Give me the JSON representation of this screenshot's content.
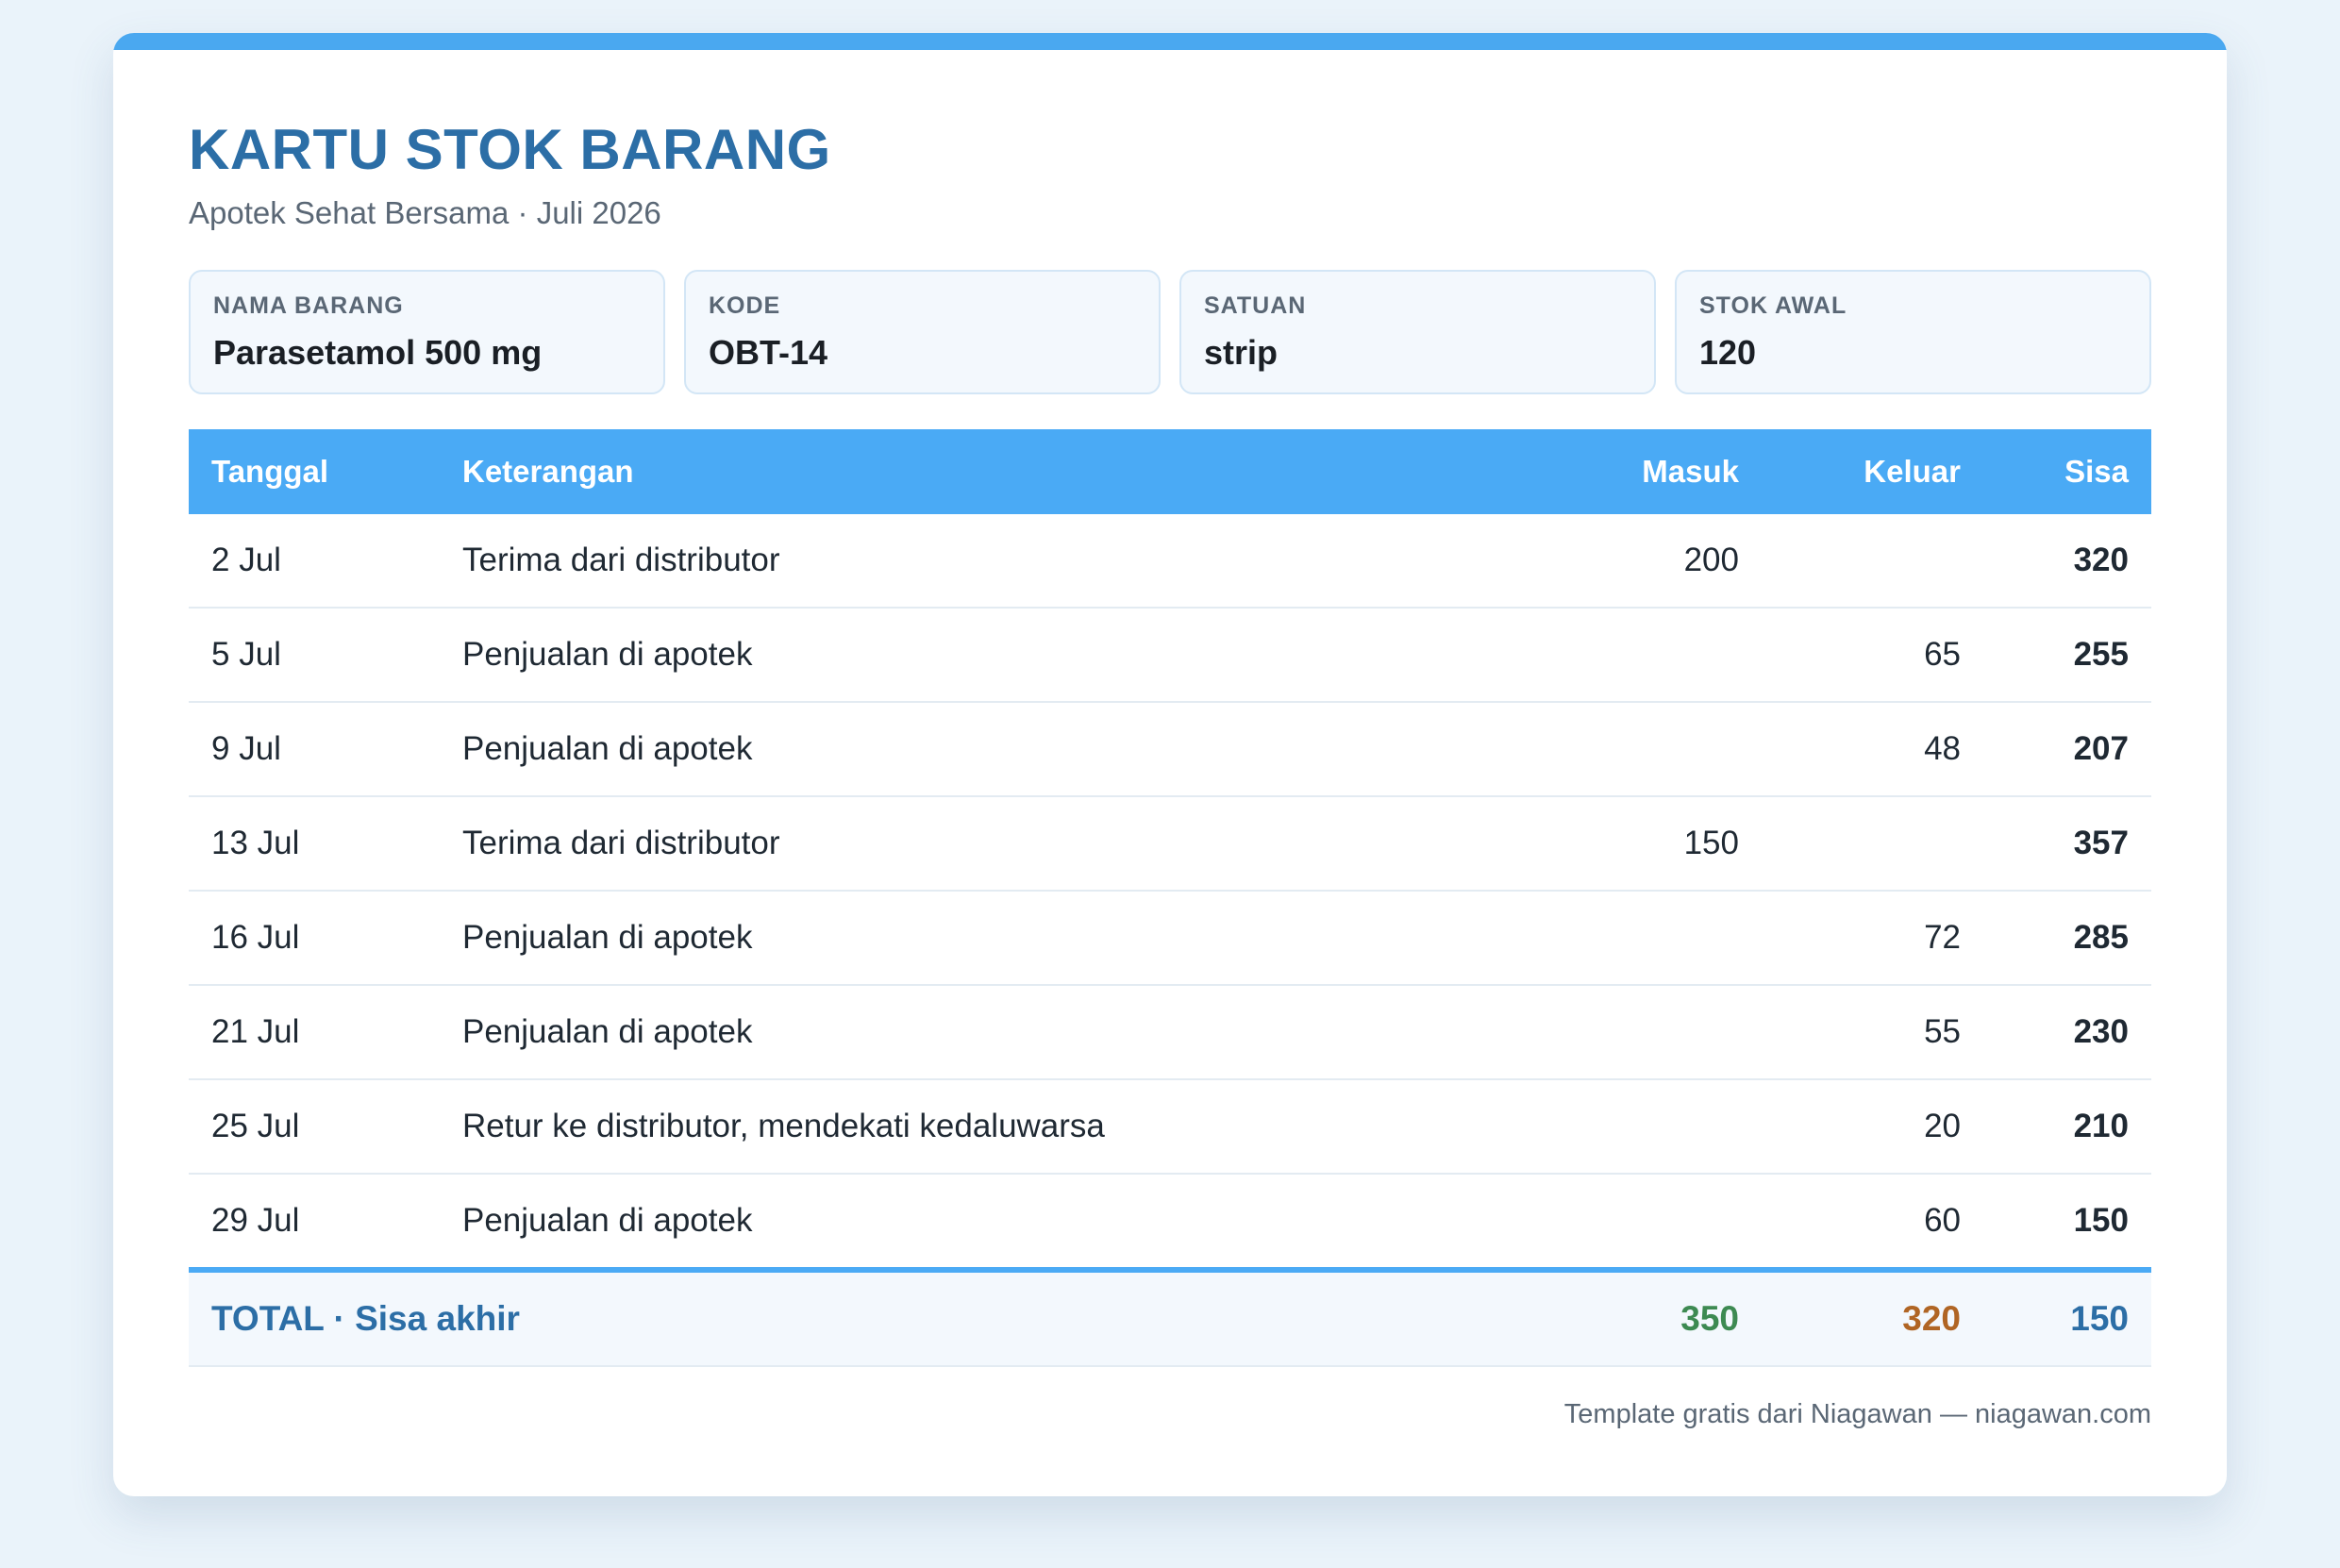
{
  "header": {
    "title": "KARTU STOK BARANG",
    "subtitle": "Apotek Sehat Bersama · Juli 2026"
  },
  "info": [
    {
      "label": "NAMA BARANG",
      "value": "Parasetamol 500 mg"
    },
    {
      "label": "KODE",
      "value": "OBT-14"
    },
    {
      "label": "SATUAN",
      "value": "strip"
    },
    {
      "label": "STOK AWAL",
      "value": "120"
    }
  ],
  "table": {
    "columns": [
      "Tanggal",
      "Keterangan",
      "Masuk",
      "Keluar",
      "Sisa"
    ],
    "rows": [
      {
        "date": "2 Jul",
        "desc": "Terima dari distributor",
        "in": "200",
        "out": "",
        "balance": "320"
      },
      {
        "date": "5 Jul",
        "desc": "Penjualan di apotek",
        "in": "",
        "out": "65",
        "balance": "255"
      },
      {
        "date": "9 Jul",
        "desc": "Penjualan di apotek",
        "in": "",
        "out": "48",
        "balance": "207"
      },
      {
        "date": "13 Jul",
        "desc": "Terima dari distributor",
        "in": "150",
        "out": "",
        "balance": "357"
      },
      {
        "date": "16 Jul",
        "desc": "Penjualan di apotek",
        "in": "",
        "out": "72",
        "balance": "285"
      },
      {
        "date": "21 Jul",
        "desc": "Penjualan di apotek",
        "in": "",
        "out": "55",
        "balance": "230"
      },
      {
        "date": "25 Jul",
        "desc": "Retur ke distributor, mendekati kedaluwarsa",
        "in": "",
        "out": "20",
        "balance": "210"
      },
      {
        "date": "29 Jul",
        "desc": "Penjualan di apotek",
        "in": "",
        "out": "60",
        "balance": "150"
      }
    ],
    "total": {
      "label": "TOTAL · Sisa akhir",
      "in": "350",
      "out": "320",
      "balance": "150"
    }
  },
  "footer": {
    "text": "Template gratis dari Niagawan — niagawan.com"
  },
  "colors": {
    "accent": "#4aaaf5",
    "title": "#2c6ea6",
    "in": "#3d8a52",
    "out": "#b06524"
  }
}
